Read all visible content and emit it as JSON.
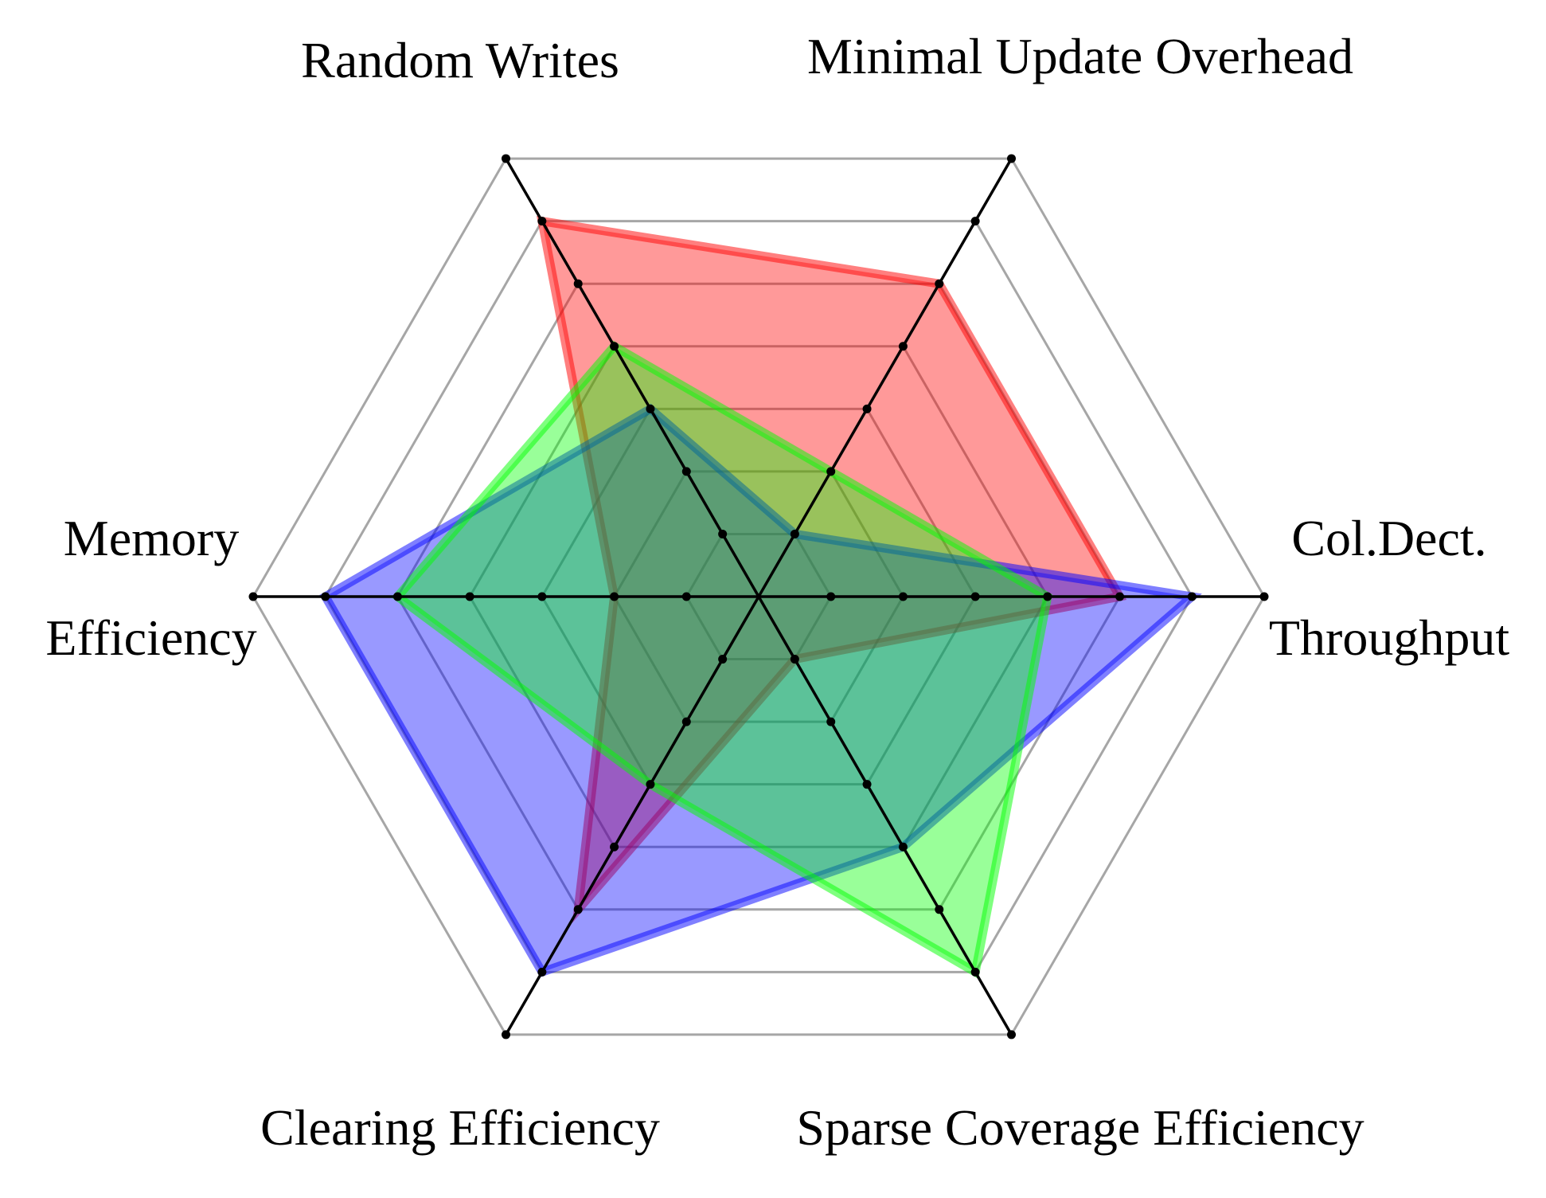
{
  "chart_data": {
    "type": "radar",
    "title": "",
    "axes": [
      {
        "label_lines": [
          "Col.Dect.",
          "Throughput"
        ]
      },
      {
        "label_lines": [
          "Minimal Update Overhead"
        ]
      },
      {
        "label_lines": [
          "Random Writes"
        ]
      },
      {
        "label_lines": [
          "Memory",
          "Efficiency"
        ]
      },
      {
        "label_lines": [
          "Clearing Efficiency"
        ]
      },
      {
        "label_lines": [
          "Sparse Coverage Efficiency"
        ]
      }
    ],
    "scale_max": 7,
    "grid_levels": 7,
    "series": [
      {
        "color": "#ff0000",
        "values": [
          5,
          5,
          6,
          2,
          5,
          1
        ]
      },
      {
        "color": "#0000ff",
        "values": [
          6,
          1,
          3,
          6,
          6,
          4
        ]
      },
      {
        "color": "#00ff00",
        "values": [
          4,
          2,
          4,
          5,
          3,
          6
        ]
      }
    ],
    "legend": "none",
    "grid": true
  }
}
